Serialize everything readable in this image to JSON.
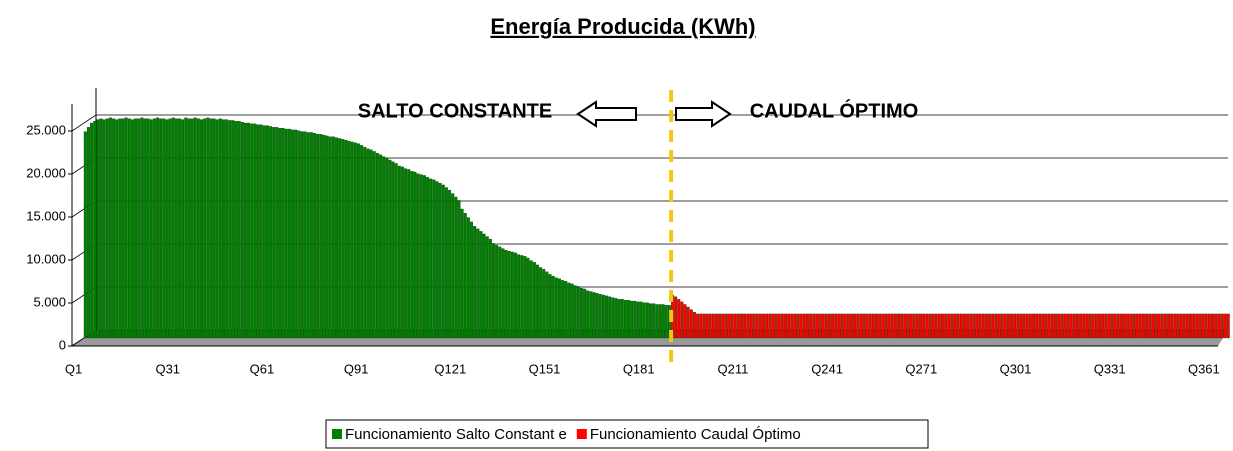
{
  "chart_data": {
    "type": "bar",
    "title": "Energía Producida (KWh)",
    "annotations": [
      "SALTO CONSTANTE",
      "CAUDAL ÓPTIMO"
    ],
    "categories": [
      "Q1",
      null,
      null,
      null,
      null,
      null,
      null,
      null,
      null,
      null,
      null,
      null,
      null,
      null,
      null,
      null,
      null,
      null,
      null,
      null,
      null,
      null,
      null,
      null,
      null,
      null,
      null,
      null,
      null,
      null,
      "Q31",
      null,
      null,
      null,
      null,
      null,
      null,
      null,
      null,
      null,
      null,
      null,
      null,
      null,
      null,
      null,
      null,
      null,
      null,
      null,
      null,
      null,
      null,
      null,
      null,
      null,
      null,
      null,
      null,
      null,
      "Q61",
      null,
      null,
      null,
      null,
      null,
      null,
      null,
      null,
      null,
      null,
      null,
      null,
      null,
      null,
      null,
      null,
      null,
      null,
      null,
      null,
      null,
      null,
      null,
      null,
      null,
      null,
      null,
      null,
      null,
      "Q91",
      null,
      null,
      null,
      null,
      null,
      null,
      null,
      null,
      null,
      null,
      null,
      null,
      null,
      null,
      null,
      null,
      null,
      null,
      null,
      null,
      null,
      null,
      null,
      null,
      null,
      null,
      null,
      null,
      null,
      "Q121",
      null,
      null,
      null,
      null,
      null,
      null,
      null,
      null,
      null,
      null,
      null,
      null,
      null,
      null,
      null,
      null,
      null,
      null,
      null,
      null,
      null,
      null,
      null,
      null,
      null,
      null,
      null,
      null,
      null,
      "Q151",
      null,
      null,
      null,
      null,
      null,
      null,
      null,
      null,
      null,
      null,
      null,
      null,
      null,
      null,
      null,
      null,
      null,
      null,
      null,
      null,
      null,
      null,
      null,
      null,
      null,
      null,
      null,
      null,
      null,
      "Q181",
      null,
      null,
      null,
      null,
      null,
      null,
      null,
      null,
      null,
      null,
      null,
      null,
      null,
      null,
      null,
      null,
      null,
      null,
      null,
      null,
      null,
      null,
      null,
      null,
      null,
      null,
      null,
      null,
      null,
      "Q211",
      null,
      null,
      null,
      null,
      null,
      null,
      null,
      null,
      null,
      null,
      null,
      null,
      null,
      null,
      null,
      null,
      null,
      null,
      null,
      null,
      null,
      null,
      null,
      null,
      null,
      null,
      null,
      null,
      null,
      "Q241",
      null,
      null,
      null,
      null,
      null,
      null,
      null,
      null,
      null,
      null,
      null,
      null,
      null,
      null,
      null,
      null,
      null,
      null,
      null,
      null,
      null,
      null,
      null,
      null,
      null,
      null,
      null,
      null,
      null,
      "Q271",
      null,
      null,
      null,
      null,
      null,
      null,
      null,
      null,
      null,
      null,
      null,
      null,
      null,
      null,
      null,
      null,
      null,
      null,
      null,
      null,
      null,
      null,
      null,
      null,
      null,
      null,
      null,
      null,
      null,
      "Q301",
      null,
      null,
      null,
      null,
      null,
      null,
      null,
      null,
      null,
      null,
      null,
      null,
      null,
      null,
      null,
      null,
      null,
      null,
      null,
      null,
      null,
      null,
      null,
      null,
      null,
      null,
      null,
      null,
      null,
      "Q331",
      null,
      null,
      null,
      null,
      null,
      null,
      null,
      null,
      null,
      null,
      null,
      null,
      null,
      null,
      null,
      null,
      null,
      null,
      null,
      null,
      null,
      null,
      null,
      null,
      null,
      null,
      null,
      null,
      null,
      "Q361",
      null,
      null,
      null,
      null
    ],
    "series": [
      {
        "name": "Funcionamiento Salto Constant e",
        "color": "#008000",
        "values": [
          24000,
          24500,
          25000,
          25200,
          25400,
          25500,
          25400,
          25500,
          25600,
          25500,
          25400,
          25500,
          25500,
          25600,
          25500,
          25400,
          25500,
          25500,
          25600,
          25500,
          25500,
          25400,
          25500,
          25600,
          25500,
          25500,
          25400,
          25500,
          25600,
          25500,
          25500,
          25400,
          25600,
          25500,
          25500,
          25600,
          25500,
          25400,
          25500,
          25600,
          25500,
          25500,
          25400,
          25500,
          25400,
          25400,
          25300,
          25300,
          25200,
          25200,
          25100,
          25000,
          25000,
          24900,
          24900,
          24800,
          24800,
          24700,
          24700,
          24600,
          24500,
          24500,
          24400,
          24400,
          24300,
          24300,
          24200,
          24200,
          24100,
          24000,
          24000,
          23900,
          23900,
          23800,
          23700,
          23700,
          23600,
          23500,
          23400,
          23400,
          23300,
          23200,
          23100,
          23000,
          22900,
          22800,
          22700,
          22600,
          22400,
          22200,
          22000,
          21900,
          21700,
          21500,
          21300,
          21100,
          20900,
          20700,
          20500,
          20300,
          20000,
          19900,
          19700,
          19600,
          19400,
          19300,
          19100,
          19000,
          18900,
          18700,
          18500,
          18400,
          18200,
          18000,
          17800,
          17500,
          17200,
          16800,
          16400,
          16000,
          15000,
          14500,
          14000,
          13500,
          13000,
          12700,
          12400,
          12100,
          11800,
          11500,
          11000,
          10800,
          10600,
          10400,
          10200,
          10100,
          10000,
          9900,
          9700,
          9600,
          9500,
          9300,
          9000,
          8800,
          8500,
          8200,
          8000,
          7700,
          7400,
          7200,
          7000,
          6900,
          6700,
          6600,
          6400,
          6300,
          6100,
          6000,
          5800,
          5700,
          5500,
          5400,
          5300,
          5200,
          5100,
          5000,
          4900,
          4800,
          4700,
          4600,
          4500,
          4500,
          4400,
          4400,
          4300,
          4300,
          4200,
          4200,
          4100,
          4100,
          4000,
          4000,
          3900,
          3900,
          3900,
          3800,
          3800,
          null,
          null,
          null,
          null,
          null,
          null,
          null,
          null,
          null,
          null,
          null,
          null,
          null,
          null,
          null,
          null,
          null,
          null,
          null,
          null,
          null,
          null,
          null,
          null,
          null,
          null,
          null,
          null,
          null,
          null,
          null,
          null,
          null,
          null,
          null,
          null,
          null,
          null,
          null,
          null,
          null,
          null,
          null,
          null,
          null,
          null,
          null,
          null,
          null,
          null,
          null,
          null,
          null,
          null,
          null,
          null,
          null,
          null,
          null,
          null,
          null,
          null,
          null,
          null,
          null,
          null,
          null,
          null,
          null,
          null,
          null,
          null,
          null,
          null,
          null,
          null,
          null,
          null,
          null,
          null,
          null,
          null,
          null,
          null,
          null,
          null,
          null,
          null,
          null,
          null,
          null,
          null,
          null,
          null,
          null,
          null,
          null,
          null,
          null,
          null,
          null,
          null,
          null,
          null,
          null,
          null,
          null,
          null,
          null,
          null,
          null,
          null,
          null,
          null,
          null,
          null,
          null,
          null,
          null,
          null,
          null,
          null,
          null,
          null,
          null,
          null,
          null,
          null,
          null,
          null,
          null,
          null,
          null,
          null,
          null,
          null,
          null,
          null,
          null,
          null,
          null,
          null,
          null,
          null,
          null,
          null,
          null,
          null,
          null,
          null,
          null,
          null,
          null,
          null,
          null,
          null,
          null,
          null,
          null,
          null,
          null,
          null,
          null,
          null,
          null,
          null,
          null,
          null,
          null,
          null,
          null,
          null,
          null,
          null,
          null,
          null,
          null,
          null
        ]
      },
      {
        "name": "Funcionamiento Caudal Óptimo",
        "color": "#ff0000",
        "values": [
          null,
          null,
          null,
          null,
          null,
          null,
          null,
          null,
          null,
          null,
          null,
          null,
          null,
          null,
          null,
          null,
          null,
          null,
          null,
          null,
          null,
          null,
          null,
          null,
          null,
          null,
          null,
          null,
          null,
          null,
          null,
          null,
          null,
          null,
          null,
          null,
          null,
          null,
          null,
          null,
          null,
          null,
          null,
          null,
          null,
          null,
          null,
          null,
          null,
          null,
          null,
          null,
          null,
          null,
          null,
          null,
          null,
          null,
          null,
          null,
          null,
          null,
          null,
          null,
          null,
          null,
          null,
          null,
          null,
          null,
          null,
          null,
          null,
          null,
          null,
          null,
          null,
          null,
          null,
          null,
          null,
          null,
          null,
          null,
          null,
          null,
          null,
          null,
          null,
          null,
          null,
          null,
          null,
          null,
          null,
          null,
          null,
          null,
          null,
          null,
          null,
          null,
          null,
          null,
          null,
          null,
          null,
          null,
          null,
          null,
          null,
          null,
          null,
          null,
          null,
          null,
          null,
          null,
          null,
          null,
          null,
          null,
          null,
          null,
          null,
          null,
          null,
          null,
          null,
          null,
          null,
          null,
          null,
          null,
          null,
          null,
          null,
          null,
          null,
          null,
          null,
          null,
          null,
          null,
          null,
          null,
          null,
          null,
          null,
          null,
          null,
          null,
          null,
          null,
          null,
          null,
          null,
          null,
          null,
          null,
          null,
          null,
          null,
          null,
          null,
          null,
          null,
          null,
          null,
          null,
          null,
          null,
          null,
          null,
          null,
          null,
          null,
          null,
          null,
          null,
          null,
          null,
          null,
          null,
          null,
          null,
          null,
          5000,
          4800,
          4500,
          4200,
          3900,
          3600,
          3300,
          3000,
          2800,
          2800,
          2800,
          2800,
          2800,
          2800,
          2800,
          2800,
          2800,
          2800,
          2800,
          2800,
          2800,
          2800,
          2800,
          2800,
          2800,
          2800,
          2800,
          2800,
          2800,
          2800,
          2800,
          2800,
          2800,
          2800,
          2800,
          2800,
          2800,
          2800,
          2800,
          2800,
          2800,
          2800,
          2800,
          2800,
          2800,
          2800,
          2800,
          2800,
          2800,
          2800,
          2800,
          2800,
          2800,
          2800,
          2800,
          2800,
          2800,
          2800,
          2800,
          2800,
          2800,
          2800,
          2800,
          2800,
          2800,
          2800,
          2800,
          2800,
          2800,
          2800,
          2800,
          2800,
          2800,
          2800,
          2800,
          2800,
          2800,
          2800,
          2800,
          2800,
          2800,
          2800,
          2800,
          2800,
          2800,
          2800,
          2800,
          2800,
          2800,
          2800,
          2800,
          2800,
          2800,
          2800,
          2800,
          2800,
          2800,
          2800,
          2800,
          2800,
          2800,
          2800,
          2800,
          2800,
          2800,
          2800,
          2800,
          2800,
          2800,
          2800,
          2800,
          2800,
          2800,
          2800,
          2800,
          2800,
          2800,
          2800,
          2800,
          2800,
          2800,
          2800,
          2800,
          2800,
          2800,
          2800,
          2800,
          2800,
          2800,
          2800,
          2800,
          2800,
          2800,
          2800,
          2800,
          2800,
          2800,
          2800,
          2800,
          2800,
          2800,
          2800,
          2800,
          2800,
          2800,
          2800,
          2800,
          2800,
          2800,
          2800,
          2800,
          2800,
          2800,
          2800,
          2800,
          2800,
          2800,
          2800,
          2800,
          2800,
          2800,
          2800,
          2800,
          2800,
          2800,
          2800,
          2800,
          2800,
          2800,
          2800,
          2800,
          2800,
          2800,
          2800,
          2800,
          2800,
          2800,
          2800
        ]
      }
    ],
    "ylim": [
      0,
      30000
    ],
    "yticks": [
      {
        "value": 0,
        "label": "0"
      },
      {
        "value": 5000,
        "label": "5.000"
      },
      {
        "value": 10000,
        "label": "10.000"
      },
      {
        "value": 15000,
        "label": "15.000"
      },
      {
        "value": 20000,
        "label": "20.000"
      },
      {
        "value": 25000,
        "label": "25.000"
      }
    ],
    "grid": true,
    "legend": "bottom"
  }
}
